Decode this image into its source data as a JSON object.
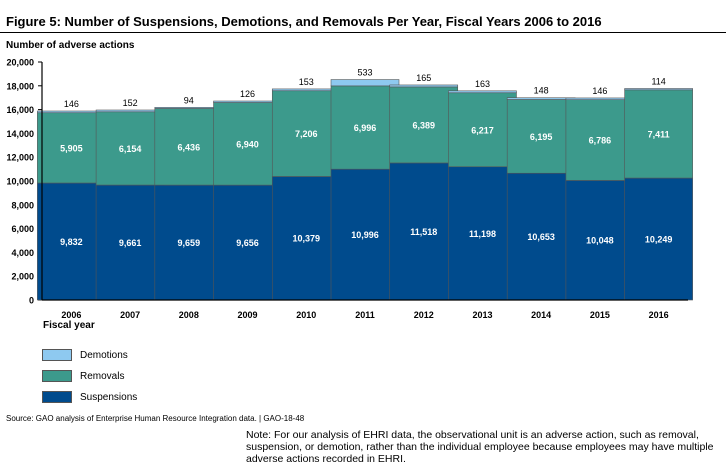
{
  "figure": {
    "title": "Figure 5: Number of Suspensions, Demotions, and Removals Per Year, Fiscal Years 2006 to 2016",
    "source": "Source: GAO analysis of Enterprise Human Resource Integration data.  |  GAO-18-48",
    "note": "Note: For our analysis of EHRI data, the observational unit is an adverse action, such as removal, suspension, or demotion, rather than the individual employee because employees may have multiple adverse actions recorded in EHRI."
  },
  "chart_data": {
    "type": "bar",
    "stacked": true,
    "ylabel": "Number of adverse actions",
    "xlabel": "Fiscal year",
    "ylim": [
      0,
      20000
    ],
    "yticks": [
      0,
      2000,
      4000,
      6000,
      8000,
      10000,
      12000,
      14000,
      16000,
      18000,
      20000
    ],
    "ytick_labels": [
      "0",
      "2,000",
      "4,000",
      "6,000",
      "8,000",
      "10,000",
      "12,000",
      "14,000",
      "16,000",
      "18,000",
      "20,000"
    ],
    "grid": false,
    "legend_position": "bottom-left",
    "categories": [
      "2006",
      "2007",
      "2008",
      "2009",
      "2010",
      "2011",
      "2012",
      "2013",
      "2014",
      "2015",
      "2016"
    ],
    "series": [
      {
        "name": "Suspensions",
        "color": "#004b8d",
        "values": [
          9832,
          9661,
          9659,
          9656,
          10379,
          10996,
          11518,
          11198,
          10653,
          10048,
          10249
        ],
        "labels": [
          "9,832",
          "9,661",
          "9,659",
          "9,656",
          "10,379",
          "10,996",
          "11,518",
          "11,198",
          "10,653",
          "10,048",
          "10,249"
        ]
      },
      {
        "name": "Removals",
        "color": "#3c9a8c",
        "values": [
          5905,
          6154,
          6436,
          6940,
          7206,
          6996,
          6389,
          6217,
          6195,
          6786,
          7411
        ],
        "labels": [
          "5,905",
          "6,154",
          "6,436",
          "6,940",
          "7,206",
          "6,996",
          "6,389",
          "6,217",
          "6,195",
          "6,786",
          "7,411"
        ]
      },
      {
        "name": "Demotions",
        "color": "#8ec9f0",
        "values": [
          146,
          152,
          94,
          126,
          153,
          533,
          165,
          163,
          148,
          146,
          114
        ],
        "labels": [
          "146",
          "152",
          "94",
          "126",
          "153",
          "533",
          "165",
          "163",
          "148",
          "146",
          "114"
        ]
      }
    ]
  }
}
